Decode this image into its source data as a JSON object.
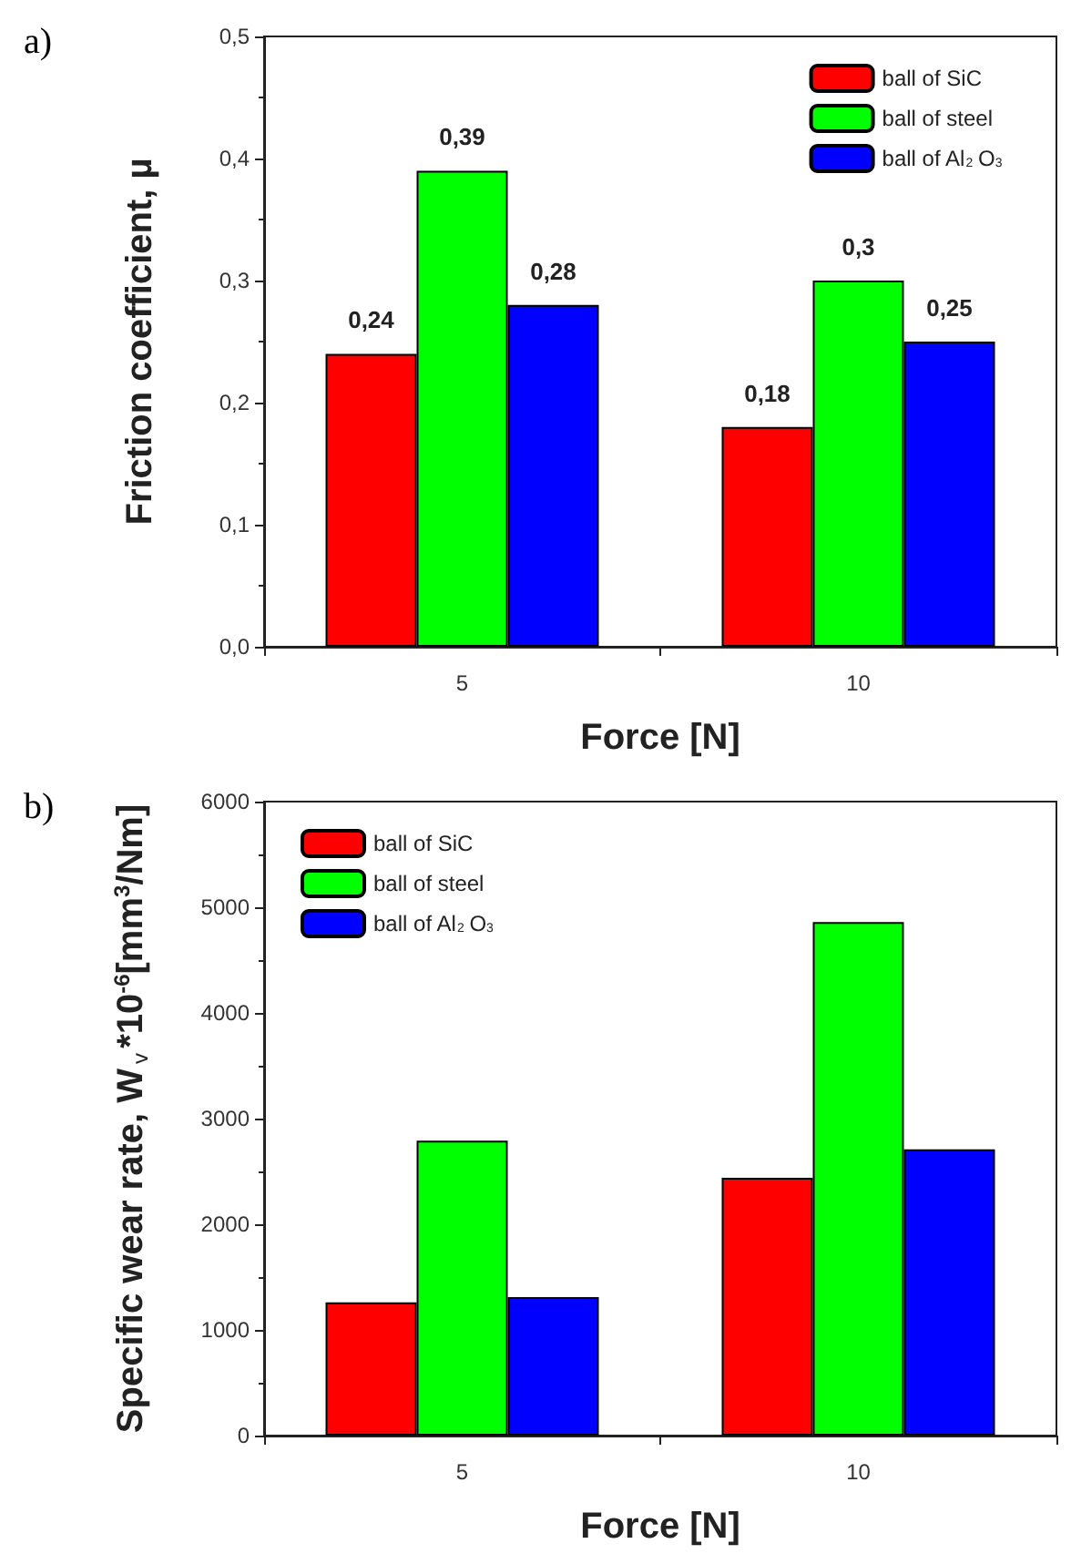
{
  "chart_data": [
    {
      "type": "bar",
      "title": "a)",
      "xlabel": "Force [N]",
      "ylabel": "Friction coefficient, µ",
      "categories": [
        "5",
        "10"
      ],
      "series": [
        {
          "name": "ball of SiC",
          "color": "#ff0000",
          "values": [
            0.24,
            0.18
          ],
          "value_labels": [
            "0,24",
            "0,18"
          ]
        },
        {
          "name": "ball of steel",
          "color": "#00ff00",
          "values": [
            0.39,
            0.3
          ],
          "value_labels": [
            "0,39",
            "0,3"
          ]
        },
        {
          "name": "ball of Al$_{2}$O$_{3}$",
          "color": "#0000ff",
          "values": [
            0.28,
            0.25
          ],
          "value_labels": [
            "0,28",
            "0,25"
          ]
        }
      ],
      "ylim": [
        0,
        0.5
      ],
      "yticks": [
        {
          "value": 0,
          "label": "0,0"
        },
        {
          "value": 0.1,
          "label": "0,1"
        },
        {
          "value": 0.2,
          "label": "0,2"
        },
        {
          "value": 0.3,
          "label": "0,3"
        },
        {
          "value": 0.4,
          "label": "0,4"
        },
        {
          "value": 0.5,
          "label": "0,5"
        }
      ],
      "grid": false,
      "legend": "top right"
    },
    {
      "type": "bar",
      "title": "b)",
      "xlabel": "Force [N]",
      "ylabel": "Specific wear rate, W$_{v}$*10$^{-6}$[mm$^{3}$/Nm]",
      "categories": [
        "5",
        "10"
      ],
      "series": [
        {
          "name": "ball of SiC",
          "color": "#ff0000",
          "values": [
            1260,
            2440
          ]
        },
        {
          "name": "ball of steel",
          "color": "#00ff00",
          "values": [
            2790,
            4860
          ]
        },
        {
          "name": "ball of Al$_{2}$O$_{3}$",
          "color": "#0000ff",
          "values": [
            1310,
            2710
          ]
        }
      ],
      "ylim": [
        0,
        6000
      ],
      "yticks": [
        0,
        1000,
        2000,
        3000,
        4000,
        5000,
        6000
      ],
      "grid": false,
      "legend": "top left"
    }
  ]
}
